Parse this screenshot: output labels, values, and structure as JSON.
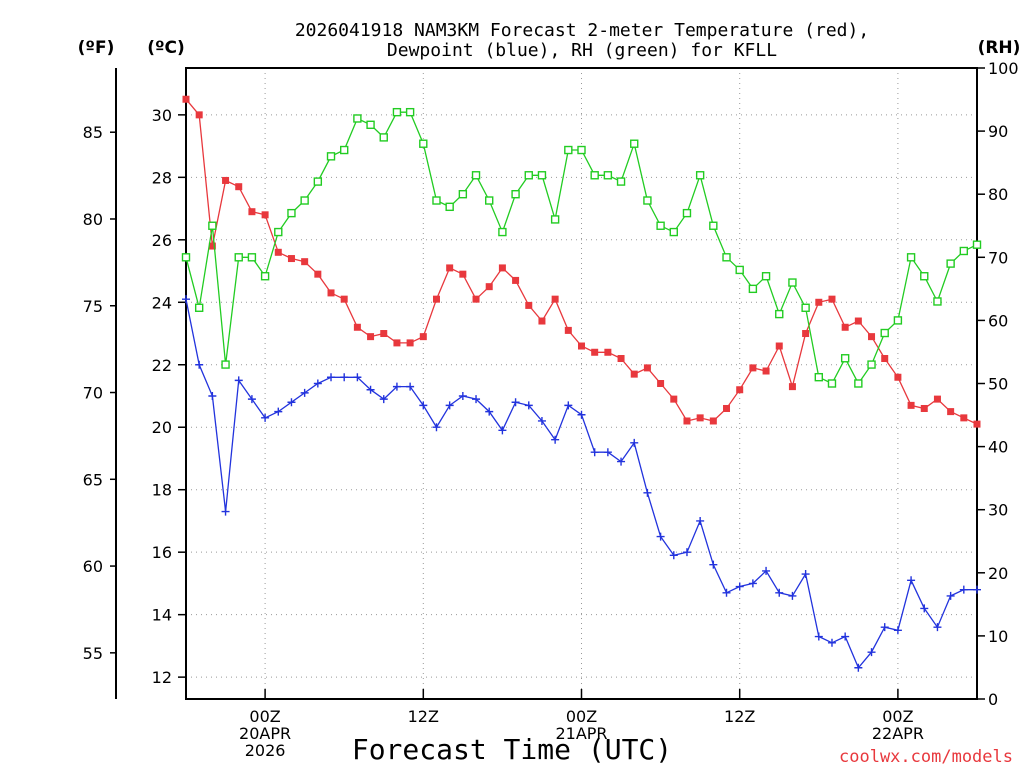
{
  "chart_data": {
    "type": "line",
    "title_line1": "2026041918 NAM3KM Forecast 2-meter Temperature (red),",
    "title_line2": "Dewpoint (blue), RH (green) for KFLL",
    "left_unit_f": "(ºF)",
    "left_unit_c": "(ºC)",
    "right_unit": "(RH)",
    "xlabel": "Forecast Time (UTC)",
    "watermark": "coolwx.com/models",
    "x_range_hours": [
      -6,
      54
    ],
    "x_ticks": [
      {
        "hour": 0,
        "lines": [
          "00Z",
          "20APR",
          "2026"
        ]
      },
      {
        "hour": 12,
        "lines": [
          "12Z"
        ]
      },
      {
        "hour": 24,
        "lines": [
          "00Z",
          "21APR"
        ]
      },
      {
        "hour": 36,
        "lines": [
          "12Z"
        ]
      },
      {
        "hour": 48,
        "lines": [
          "00Z",
          "22APR"
        ]
      }
    ],
    "celsius_axis": {
      "range": [
        11.3,
        31.5
      ],
      "ticks": [
        12,
        14,
        16,
        18,
        20,
        22,
        24,
        26,
        28,
        30
      ]
    },
    "fahrenheit_ticks": [
      55,
      60,
      65,
      70,
      75,
      80,
      85
    ],
    "rh_axis": {
      "range": [
        0,
        100
      ],
      "ticks": [
        0,
        10,
        20,
        30,
        40,
        50,
        60,
        70,
        80,
        90,
        100
      ]
    },
    "series": [
      {
        "name": "2-meter Temperature",
        "unit": "C",
        "color": "#e8383d",
        "marker": "filled-square",
        "values": [
          30.5,
          30.0,
          25.8,
          27.9,
          27.7,
          26.9,
          26.8,
          25.6,
          25.4,
          25.3,
          24.9,
          24.3,
          24.1,
          23.2,
          22.9,
          23.0,
          22.7,
          22.7,
          22.9,
          24.1,
          25.1,
          24.9,
          24.1,
          24.5,
          25.1,
          24.7,
          23.9,
          23.4,
          24.1,
          23.1,
          22.6,
          22.4,
          22.4,
          22.2,
          21.7,
          21.9,
          21.4,
          20.9,
          20.2,
          20.3,
          20.2,
          20.6,
          21.2,
          21.9,
          21.8,
          22.6,
          21.3,
          23.0,
          24.0,
          24.1,
          23.2,
          23.4,
          22.9,
          22.2,
          21.6,
          20.7,
          20.6,
          20.9,
          20.5,
          20.3,
          20.1
        ]
      },
      {
        "name": "Dewpoint",
        "unit": "C",
        "color": "#2233dd",
        "marker": "plus",
        "values": [
          24.1,
          22.0,
          21.0,
          17.3,
          21.5,
          20.9,
          20.3,
          20.5,
          20.8,
          21.1,
          21.4,
          21.6,
          21.6,
          21.6,
          21.2,
          20.9,
          21.3,
          21.3,
          20.7,
          20.0,
          20.7,
          21.0,
          20.9,
          20.5,
          19.9,
          20.8,
          20.7,
          20.2,
          19.6,
          20.7,
          20.4,
          19.2,
          19.2,
          18.9,
          19.5,
          17.9,
          16.5,
          15.9,
          16.0,
          17.0,
          15.6,
          14.7,
          14.9,
          15.0,
          15.4,
          14.7,
          14.6,
          15.3,
          13.3,
          13.1,
          13.3,
          12.3,
          12.8,
          13.6,
          13.5,
          15.1,
          14.2,
          13.6,
          14.6,
          14.8,
          14.8
        ]
      },
      {
        "name": "Relative Humidity",
        "unit": "%",
        "color": "#22cc22",
        "marker": "open-square",
        "values": [
          70,
          62,
          75,
          53,
          70,
          70,
          67,
          74,
          77,
          79,
          82,
          86,
          87,
          92,
          91,
          89,
          93,
          93,
          88,
          79,
          78,
          80,
          83,
          79,
          74,
          80,
          83,
          83,
          76,
          87,
          87,
          83,
          83,
          82,
          88,
          79,
          75,
          74,
          77,
          83,
          75,
          70,
          68,
          65,
          67,
          61,
          66,
          62,
          51,
          50,
          54,
          50,
          53,
          58,
          60,
          70,
          67,
          63,
          69,
          71,
          72
        ]
      }
    ]
  }
}
